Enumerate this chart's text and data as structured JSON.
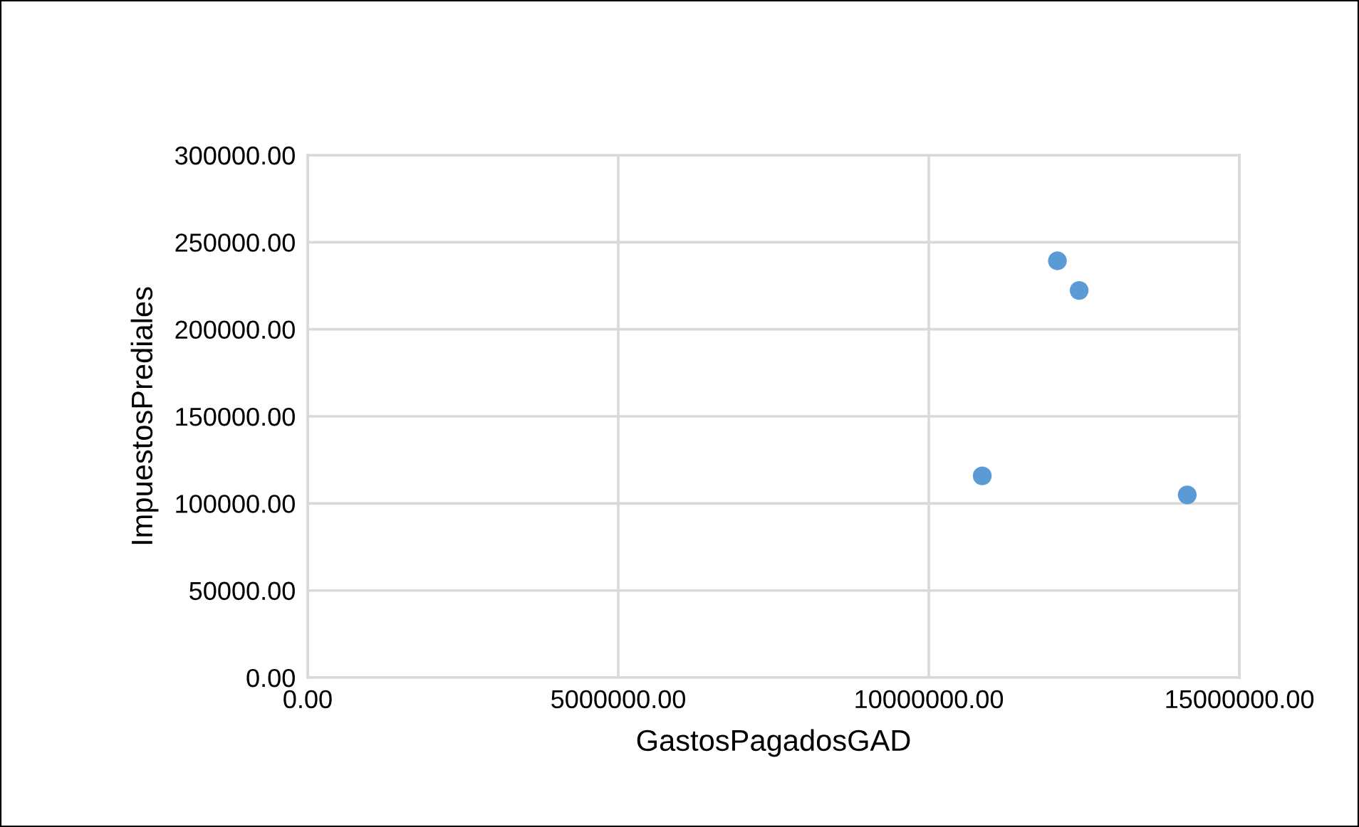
{
  "chart_data": {
    "type": "scatter",
    "xlabel": "GastosPagadosGAD",
    "ylabel": "ImpuestosPrediales",
    "series": [
      {
        "color": "#5b9bd5",
        "x": [
          10860000,
          12070000,
          12420000,
          14160000
        ],
        "values": [
          115800,
          239300,
          222300,
          104900
        ]
      }
    ],
    "xlim": [
      0,
      15000000
    ],
    "xticks": [
      {
        "value": 0,
        "label": "0.00"
      },
      {
        "value": 5000000,
        "label": "5000000.00"
      },
      {
        "value": 10000000,
        "label": "10000000.00"
      },
      {
        "value": 15000000,
        "label": "15000000.00"
      }
    ],
    "ylim": [
      0,
      300000
    ],
    "yticks": [
      {
        "value": 0,
        "label": "0.00"
      },
      {
        "value": 50000,
        "label": "50000.00"
      },
      {
        "value": 100000,
        "label": "100000.00"
      },
      {
        "value": 150000,
        "label": "150000.00"
      },
      {
        "value": 200000,
        "label": "200000.00"
      },
      {
        "value": 250000,
        "label": "250000.00"
      },
      {
        "value": 300000,
        "label": "300000.00"
      }
    ],
    "grid": true,
    "marker": "circle"
  }
}
